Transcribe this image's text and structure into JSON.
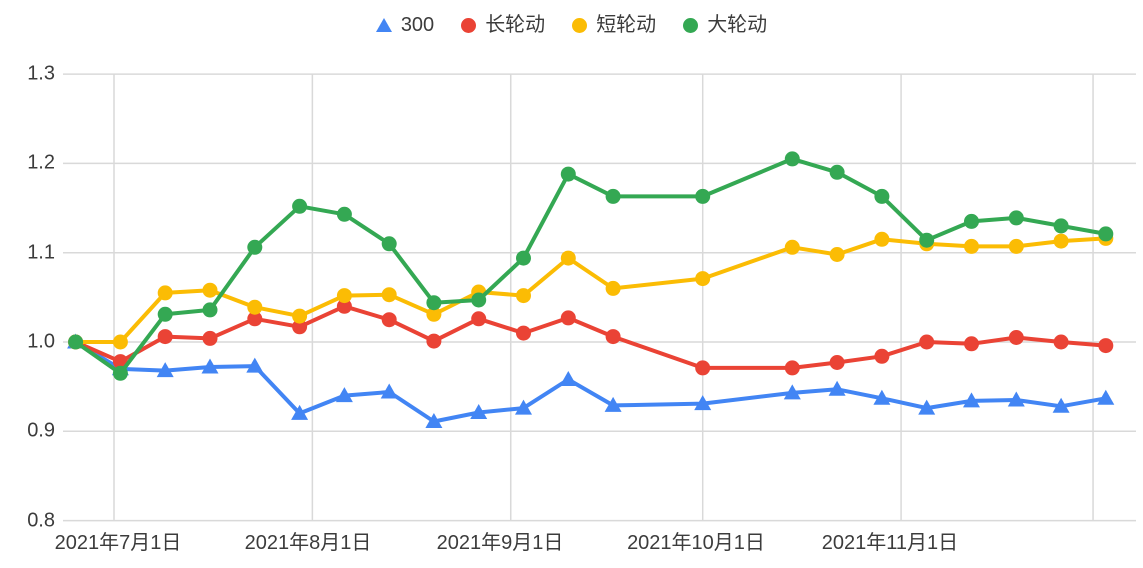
{
  "chart_data": {
    "type": "line",
    "title": "",
    "legend_position": "top",
    "grid": true,
    "colors": {
      "background": "#ffffff",
      "gridline": "#d9d9d9",
      "axis_text": "#3c3c3c",
      "legend_text": "#3c3c3c"
    },
    "y_axis": {
      "min": 0.8,
      "max": 1.3,
      "ticks": [
        1.3,
        1.2,
        1.1,
        1.0,
        0.9,
        0.8
      ],
      "tick_labels": [
        "1.3",
        "1.2",
        "1.1",
        "1.0",
        "0.9",
        "0.8"
      ]
    },
    "x_axis": {
      "tick_labels": [
        "2021年7月1日",
        "2021年8月1日",
        "2021年9月1日",
        "2021年10月1日",
        "2021年11月1日"
      ],
      "tick_dates": [
        "2021-07-01",
        "2021-08-01",
        "2021-09-01",
        "2021-10-01",
        "2021-11-01"
      ],
      "gridline_dates": [
        "2021-07-01",
        "2021-08-01",
        "2021-09-01",
        "2021-10-01",
        "2021-11-01",
        "2021-12-01"
      ]
    },
    "dates": [
      "2021-06-25",
      "2021-07-02",
      "2021-07-09",
      "2021-07-16",
      "2021-07-23",
      "2021-07-30",
      "2021-08-06",
      "2021-08-13",
      "2021-08-20",
      "2021-08-27",
      "2021-09-03",
      "2021-09-10",
      "2021-09-17",
      "2021-10-01",
      "2021-10-15",
      "2021-10-22",
      "2021-10-29",
      "2021-11-05",
      "2021-11-12",
      "2021-11-19",
      "2021-11-26",
      "2021-12-03"
    ],
    "series": [
      {
        "name": "300",
        "color": "#4285f4",
        "marker": "triangle-up",
        "values": [
          1.0,
          0.97,
          0.968,
          0.972,
          0.973,
          0.92,
          0.94,
          0.944,
          0.911,
          0.921,
          0.926,
          0.958,
          0.929,
          0.931,
          0.943,
          0.947,
          0.937,
          0.926,
          0.934,
          0.935,
          0.928,
          0.937
        ]
      },
      {
        "name": "长轮动",
        "color": "#ea4335",
        "marker": "circle",
        "values": [
          1.0,
          0.978,
          1.006,
          1.004,
          1.026,
          1.017,
          1.04,
          1.025,
          1.001,
          1.026,
          1.01,
          1.027,
          1.006,
          0.971,
          0.971,
          0.977,
          0.984,
          1.0,
          0.998,
          1.005,
          1.0,
          0.996
        ]
      },
      {
        "name": "短轮动",
        "color": "#fbbc04",
        "marker": "circle",
        "values": [
          1.0,
          1.0,
          1.055,
          1.058,
          1.039,
          1.029,
          1.052,
          1.053,
          1.031,
          1.056,
          1.052,
          1.094,
          1.06,
          1.071,
          1.106,
          1.098,
          1.115,
          1.11,
          1.107,
          1.107,
          1.113,
          1.116
        ]
      },
      {
        "name": "大轮动",
        "color": "#34a853",
        "marker": "circle",
        "values": [
          1.0,
          0.965,
          1.031,
          1.036,
          1.106,
          1.152,
          1.143,
          1.11,
          1.044,
          1.047,
          1.094,
          1.188,
          1.163,
          1.163,
          1.205,
          1.19,
          1.163,
          1.114,
          1.135,
          1.139,
          1.13,
          1.121
        ]
      }
    ]
  }
}
